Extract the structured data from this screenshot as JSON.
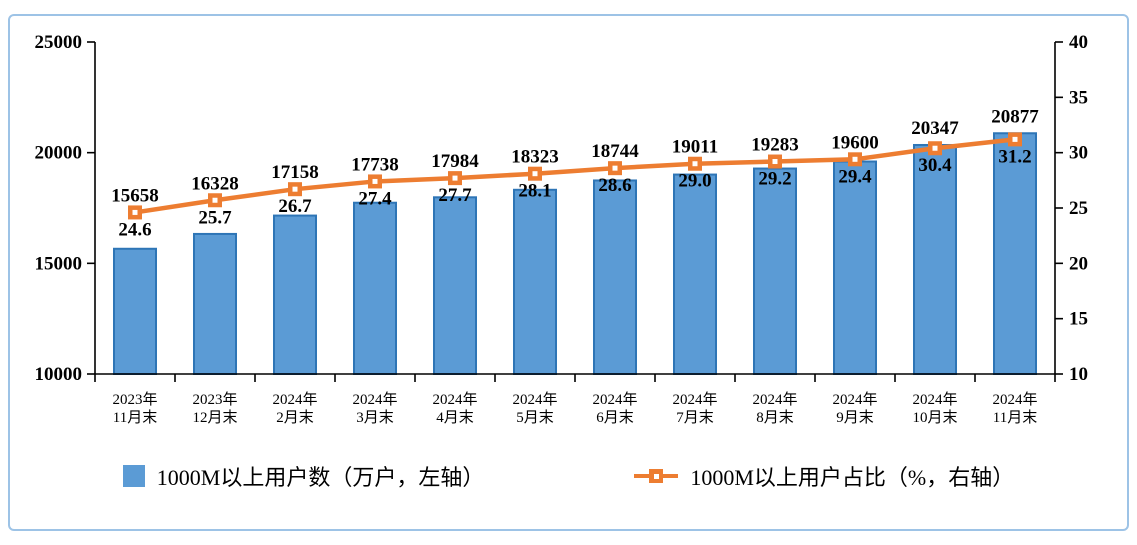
{
  "chart_data": {
    "type": "bar+line",
    "categories": [
      [
        "2023年",
        "11月末"
      ],
      [
        "2023年",
        "12月末"
      ],
      [
        "2024年",
        "2月末"
      ],
      [
        "2024年",
        "3月末"
      ],
      [
        "2024年",
        "4月末"
      ],
      [
        "2024年",
        "5月末"
      ],
      [
        "2024年",
        "6月末"
      ],
      [
        "2024年",
        "7月末"
      ],
      [
        "2024年",
        "8月末"
      ],
      [
        "2024年",
        "9月末"
      ],
      [
        "2024年",
        "10月末"
      ],
      [
        "2024年",
        "11月末"
      ]
    ],
    "series": [
      {
        "name": "1000M以上用户数（万户，左轴）",
        "type": "bar",
        "axis": "left",
        "values": [
          15658,
          16328,
          17158,
          17738,
          17984,
          18323,
          18744,
          19011,
          19283,
          19600,
          20347,
          20877
        ]
      },
      {
        "name": "1000M以上用户占比（%，右轴）",
        "type": "line",
        "axis": "right",
        "values": [
          24.6,
          25.7,
          26.7,
          27.4,
          27.7,
          28.1,
          28.6,
          29.0,
          29.2,
          29.4,
          30.4,
          31.2
        ]
      }
    ],
    "left_axis": {
      "min": 10000,
      "max": 25000,
      "ticks": [
        25000,
        20000,
        15000,
        10000
      ]
    },
    "right_axis": {
      "min": 10,
      "max": 40,
      "ticks": [
        40,
        35,
        30,
        25,
        20,
        15,
        10
      ]
    },
    "grid": false,
    "data_labels": true,
    "legend_position": "bottom"
  },
  "colors": {
    "bar_fill": "#5B9BD5",
    "bar_stroke": "#2E75B6",
    "line": "#ED7D31",
    "marker_inner": "#FFFFFF",
    "axis": "#000000",
    "frame_border": "#9DC3E6"
  }
}
